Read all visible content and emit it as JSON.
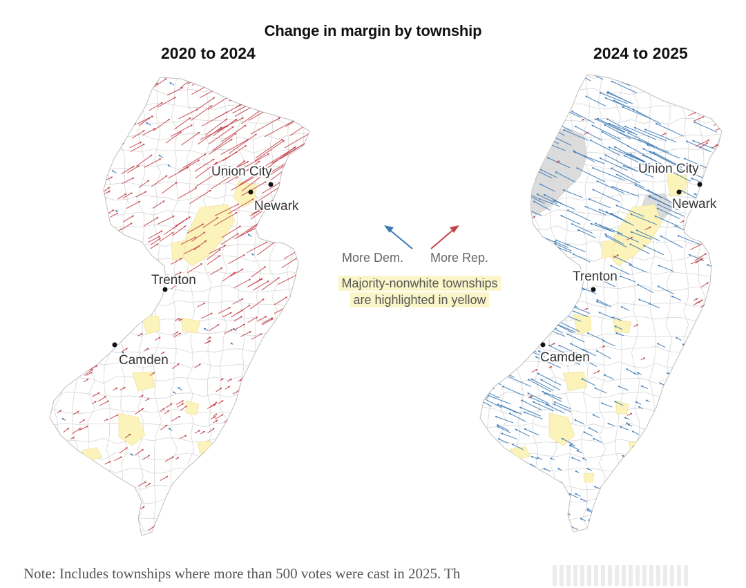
{
  "title": "Change in margin by township",
  "left_map": {
    "subtitle": "2020 to 2024"
  },
  "right_map": {
    "subtitle": "2024 to 2025"
  },
  "cities": [
    "Union City",
    "Newark",
    "Trenton",
    "Camden"
  ],
  "legend": {
    "dem_label": "More Dem.",
    "rep_label": "More Rep.",
    "highlight_note_line1": "Majority-nonwhite townships",
    "highlight_note_line2": "are highlighted in yellow"
  },
  "note": "Note: Includes townships where more than 500 votes were cast in 2025.  Th",
  "colors": {
    "dem": "#3a78b5",
    "rep": "#c4424a",
    "highlight": "#fbf3b9",
    "no_data": "#dcdcdc"
  }
}
